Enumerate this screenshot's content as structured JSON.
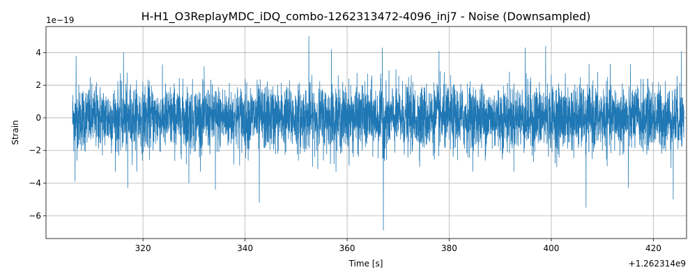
{
  "chart_data": {
    "type": "line",
    "title": "H-H1_O3ReplayMDC_iDQ_combo-1262313472-4096_inj7 - Noise (Downsampled)",
    "xlabel": "Time [s]",
    "ylabel": "Strain",
    "x_offset_label": "+1.262314e9",
    "y_scale_label": "1e−19",
    "xlim": [
      301,
      426.5
    ],
    "ylim": [
      -7.4,
      5.6
    ],
    "x_ticks": [
      320,
      340,
      360,
      380,
      400,
      420
    ],
    "x_tick_labels": [
      "320",
      "340",
      "360",
      "380",
      "400",
      "420"
    ],
    "y_ticks": [
      -6,
      -4,
      -2,
      0,
      2,
      4
    ],
    "y_tick_labels": [
      "−6",
      "−4",
      "−2",
      "0",
      "2",
      "4"
    ],
    "grid": true,
    "series": [
      {
        "color": "#1f77b4",
        "x_start": 306.2,
        "x_end": 426.0,
        "typical_amplitude": 1.0,
        "peaks": [
          {
            "x": 306.9,
            "y": 3.8
          },
          {
            "x": 306.7,
            "y": -3.9
          },
          {
            "x": 316.2,
            "y": 4.0
          },
          {
            "x": 317.0,
            "y": -4.3
          },
          {
            "x": 329.0,
            "y": -4.0
          },
          {
            "x": 334.2,
            "y": -4.4
          },
          {
            "x": 342.8,
            "y": -5.2
          },
          {
            "x": 352.5,
            "y": 5.0
          },
          {
            "x": 356.9,
            "y": 4.2
          },
          {
            "x": 366.9,
            "y": 4.3
          },
          {
            "x": 367.1,
            "y": -6.9
          },
          {
            "x": 378.0,
            "y": 4.1
          },
          {
            "x": 394.9,
            "y": 4.3
          },
          {
            "x": 398.9,
            "y": 4.4
          },
          {
            "x": 406.8,
            "y": -5.5
          },
          {
            "x": 415.1,
            "y": -4.3
          },
          {
            "x": 423.9,
            "y": -5.0
          },
          {
            "x": 425.5,
            "y": 4.1
          }
        ]
      }
    ]
  }
}
